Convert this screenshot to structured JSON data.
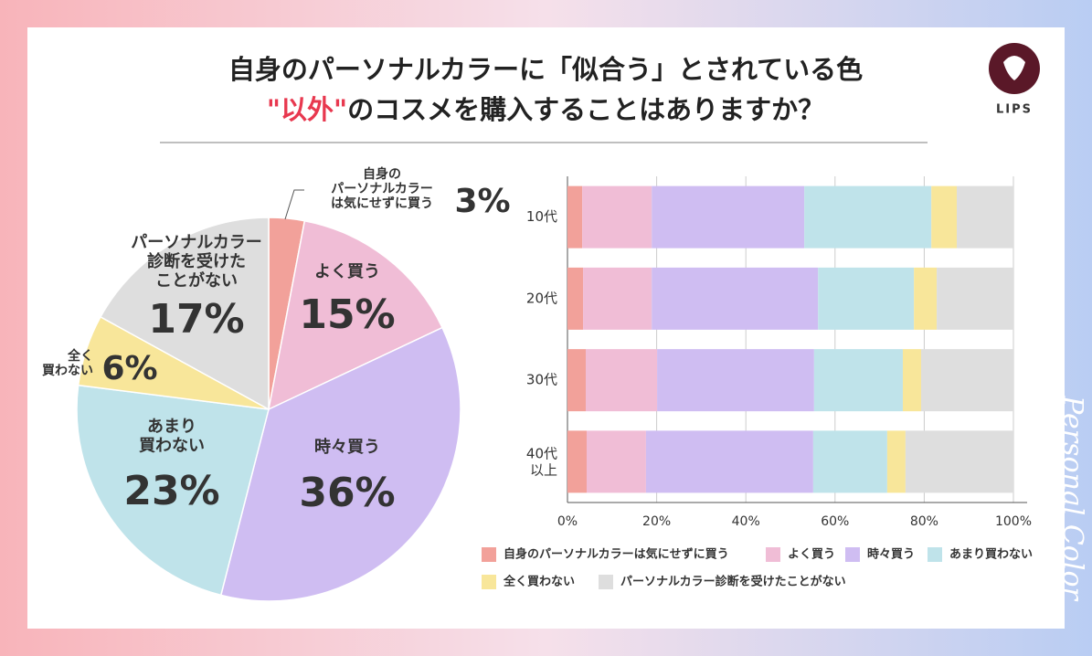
{
  "header": {
    "title_line1": "自身のパーソナルカラーに「似合う」とされている色",
    "title_line2_emphasis": "\"以外\"",
    "title_line2_rest": "のコスメを購入することはありますか？",
    "logo": "LIPS",
    "side_text": "Personal Color"
  },
  "chart_data": [
    {
      "type": "pie",
      "categories": [
        "自身の\nパーソナルカラー\nは気にせずに買う",
        "よく買う",
        "時々買う",
        "あまり\n買わない",
        "全く\n買わない",
        "パーソナルカラー\n診断を受けた\nことがない"
      ],
      "values": [
        3,
        15,
        36,
        23,
        6,
        17
      ],
      "value_labels": [
        "3%",
        "15%",
        "36%",
        "23%",
        "6%",
        "17%"
      ],
      "colors": [
        "#f2a19a",
        "#f0bdd6",
        "#cfbdf2",
        "#bfe3ea",
        "#f8e69a",
        "#dedede"
      ]
    },
    {
      "type": "stacked-bar-horizontal",
      "categories": [
        "10代",
        "20代",
        "30代",
        "40代\n以上"
      ],
      "series": [
        {
          "name": "自身のパーソナルカラーは気にせずに買う",
          "color": "#f2a19a",
          "values": [
            3.3,
            3.5,
            4.1,
            4.3
          ]
        },
        {
          "name": "よく買う",
          "color": "#f0bdd6",
          "values": [
            15.6,
            15.4,
            16.0,
            13.3
          ]
        },
        {
          "name": "時々買う",
          "color": "#cfbdf2",
          "values": [
            34.2,
            37.3,
            35.2,
            37.5
          ]
        },
        {
          "name": "あまり買わない",
          "color": "#bfe3ea",
          "values": [
            28.5,
            21.5,
            19.9,
            16.6
          ]
        },
        {
          "name": "全く買わない",
          "color": "#f8e69a",
          "values": [
            5.7,
            5.1,
            4.1,
            4.1
          ]
        },
        {
          "name": "パーソナルカラー診断を受けたことがない",
          "color": "#dedede",
          "values": [
            12.7,
            17.2,
            20.7,
            24.2
          ]
        }
      ],
      "xlim": [
        0,
        100
      ],
      "xticks": [
        {
          "value": 0,
          "label": "0%"
        },
        {
          "value": 20,
          "label": "20%"
        },
        {
          "value": 40,
          "label": "40%"
        },
        {
          "value": 60,
          "label": "60%"
        },
        {
          "value": 80,
          "label": "80%"
        },
        {
          "value": 100,
          "label": "100%"
        }
      ],
      "grid": true
    }
  ]
}
